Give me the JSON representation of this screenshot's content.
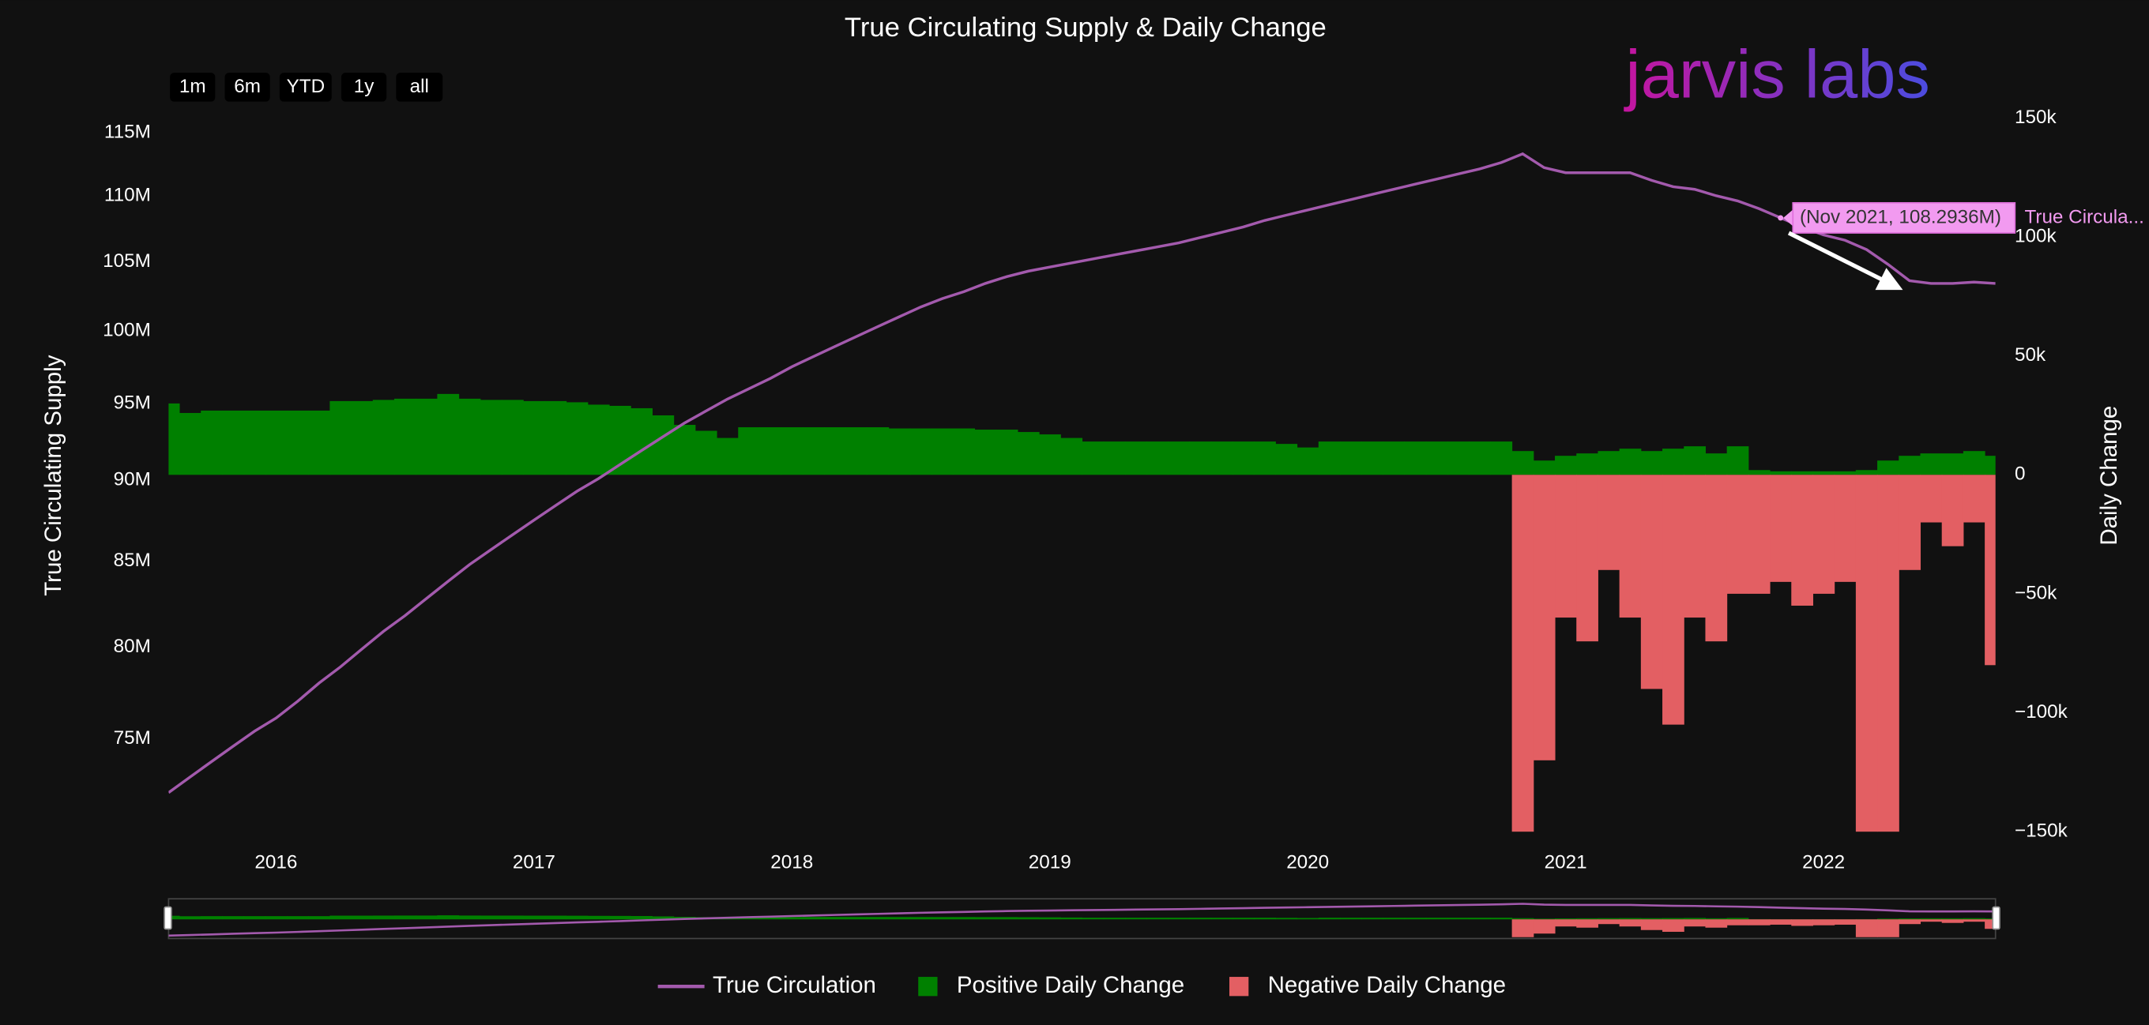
{
  "chart_data": {
    "type": "combo",
    "title": "True Circulating Supply & Daily Change",
    "x": [
      "2015-08",
      "2015-09",
      "2015-10",
      "2015-11",
      "2015-12",
      "2016-01",
      "2016-02",
      "2016-03",
      "2016-04",
      "2016-05",
      "2016-06",
      "2016-07",
      "2016-08",
      "2016-09",
      "2016-10",
      "2016-11",
      "2016-12",
      "2017-01",
      "2017-02",
      "2017-03",
      "2017-04",
      "2017-05",
      "2017-06",
      "2017-07",
      "2017-08",
      "2017-09",
      "2017-10",
      "2017-11",
      "2017-12",
      "2018-01",
      "2018-02",
      "2018-03",
      "2018-04",
      "2018-05",
      "2018-06",
      "2018-07",
      "2018-08",
      "2018-09",
      "2018-10",
      "2018-11",
      "2018-12",
      "2019-01",
      "2019-02",
      "2019-03",
      "2019-04",
      "2019-05",
      "2019-06",
      "2019-07",
      "2019-08",
      "2019-09",
      "2019-10",
      "2019-11",
      "2019-12",
      "2020-01",
      "2020-02",
      "2020-03",
      "2020-04",
      "2020-05",
      "2020-06",
      "2020-07",
      "2020-08",
      "2020-09",
      "2020-10",
      "2020-11",
      "2020-12",
      "2021-01",
      "2021-02",
      "2021-03",
      "2021-04",
      "2021-05",
      "2021-06",
      "2021-07",
      "2021-08",
      "2021-09",
      "2021-10",
      "2021-11",
      "2021-12",
      "2022-01",
      "2022-02",
      "2022-03",
      "2022-04",
      "2022-05",
      "2022-06",
      "2022-07",
      "2022-08",
      "2022-09"
    ],
    "xlim": [
      "2015-08",
      "2022-09"
    ],
    "xticks": [
      2016,
      2017,
      2018,
      2019,
      2020,
      2021,
      2022
    ],
    "y_label": "True Circulating Supply",
    "y2_label": "Daily Change",
    "y_log": true,
    "ylim": [
      70240000,
      116200000
    ],
    "yticks": [
      {
        "value": 75000000,
        "label": "75M"
      },
      {
        "value": 80000000,
        "label": "80M"
      },
      {
        "value": 85000000,
        "label": "85M"
      },
      {
        "value": 90000000,
        "label": "90M"
      },
      {
        "value": 95000000,
        "label": "95M"
      },
      {
        "value": 100000000,
        "label": "100M"
      },
      {
        "value": 105000000,
        "label": "105M"
      },
      {
        "value": 110000000,
        "label": "110M"
      },
      {
        "value": 115000000,
        "label": "115M"
      }
    ],
    "y2lim": [
      -150000,
      150000
    ],
    "y2ticks": [
      {
        "value": -150000,
        "label": "−150k"
      },
      {
        "value": -100000,
        "label": "−100k"
      },
      {
        "value": -50000,
        "label": "−50k"
      },
      0,
      {
        "value": 50000,
        "label": "50k"
      },
      {
        "value": 100000,
        "label": "100k"
      },
      {
        "value": 150000,
        "label": "150k"
      }
    ],
    "grid": false,
    "legend": "bottom",
    "series": [
      {
        "name": "True Circulation",
        "type": "line",
        "color": "#a35aad",
        "values": [
          72200000,
          73000000,
          73800000,
          74600000,
          75400000,
          76100000,
          77000000,
          78000000,
          78900000,
          79900000,
          80900000,
          81800000,
          82800000,
          83800000,
          84800000,
          85700000,
          86600000,
          87500000,
          88400000,
          89300000,
          90100000,
          91000000,
          91900000,
          92800000,
          93700000,
          94500000,
          95300000,
          96000000,
          96700000,
          97500000,
          98200000,
          98900000,
          99600000,
          100300000,
          101000000,
          101700000,
          102300000,
          102800000,
          103400000,
          103900000,
          104300000,
          104600000,
          104900000,
          105200000,
          105500000,
          105800000,
          106100000,
          106400000,
          106800000,
          107200000,
          107600000,
          108100000,
          108500000,
          108900000,
          109300000,
          109700000,
          110100000,
          110500000,
          110900000,
          111300000,
          111700000,
          112100000,
          112600000,
          113300000,
          112200000,
          111800000,
          111800000,
          111800000,
          111800000,
          111200000,
          110700000,
          110500000,
          110000000,
          109600000,
          109000000,
          108300000,
          107600000,
          107000000,
          106600000,
          105900000,
          104800000,
          103600000,
          103400000,
          103400000,
          103500000,
          103400000
        ]
      },
      {
        "name": "Positive Daily Change",
        "type": "bar",
        "axis": "y2",
        "color": "#008000",
        "values": [
          30000,
          26000,
          27000,
          27000,
          27000,
          27000,
          27000,
          27000,
          31000,
          31000,
          31500,
          32000,
          32000,
          34000,
          32000,
          31500,
          31500,
          31000,
          31000,
          30500,
          29500,
          29000,
          28000,
          25000,
          21000,
          18500,
          15500,
          20000,
          20000,
          20000,
          20000,
          20000,
          20000,
          20000,
          19500,
          19500,
          19500,
          19500,
          19000,
          19000,
          18000,
          17000,
          15500,
          14000,
          14000,
          14000,
          14000,
          14000,
          14000,
          14000,
          14000,
          14000,
          13000,
          11500,
          14000,
          14000,
          14000,
          14000,
          14000,
          14000,
          14000,
          14000,
          14000,
          10000,
          6000,
          8000,
          9000,
          10000,
          11000,
          10000,
          11000,
          12000,
          9000,
          12000,
          2000,
          1500,
          1500,
          1500,
          1500,
          2000,
          6000,
          8000,
          9000,
          9000,
          10000,
          8000
        ]
      },
      {
        "name": "Negative Daily Change",
        "type": "bar",
        "axis": "y2",
        "color": "#e35f63",
        "values": [
          null,
          null,
          null,
          null,
          null,
          null,
          null,
          null,
          null,
          null,
          null,
          null,
          null,
          null,
          null,
          null,
          null,
          null,
          null,
          null,
          null,
          null,
          null,
          null,
          null,
          null,
          null,
          null,
          null,
          null,
          null,
          null,
          null,
          null,
          null,
          null,
          null,
          null,
          null,
          null,
          null,
          null,
          null,
          null,
          null,
          null,
          null,
          null,
          null,
          null,
          null,
          null,
          null,
          null,
          null,
          null,
          null,
          null,
          null,
          null,
          null,
          null,
          null,
          -150000,
          -120000,
          -60000,
          -70000,
          -40000,
          -60000,
          -90000,
          -105000,
          -60000,
          -70000,
          -50000,
          -50000,
          -45000,
          -55000,
          -50000,
          -45000,
          -150000,
          -150000,
          -40000,
          -20000,
          -30000,
          -20000,
          -80000
        ]
      }
    ],
    "annotation": {
      "x": "2021-11",
      "y": 108293600,
      "label": "(Nov 2021, 108.2936M)",
      "series_label": "True Circula..."
    }
  },
  "range_buttons": [
    "1m",
    "6m",
    "YTD",
    "1y",
    "all"
  ],
  "logo": "jarvis labs"
}
